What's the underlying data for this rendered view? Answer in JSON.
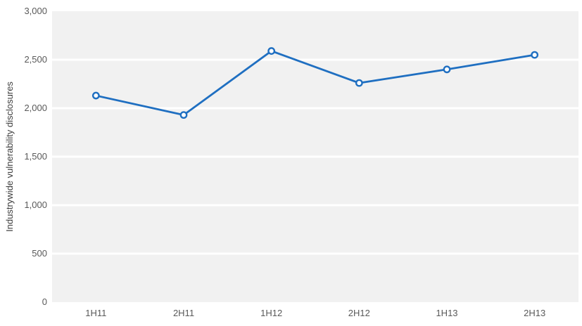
{
  "chart_data": {
    "type": "line",
    "title": "",
    "xlabel": "",
    "ylabel": "Industrywide vulnerability disclosures",
    "categories": [
      "1H11",
      "2H11",
      "1H12",
      "2H12",
      "1H13",
      "2H13"
    ],
    "series": [
      {
        "name": "Industrywide vulnerability disclosures",
        "values": [
          2130,
          1930,
          2590,
          2260,
          2400,
          2550
        ]
      }
    ],
    "ylim": [
      0,
      3000
    ],
    "ytick_step": 500,
    "y_tick_labels": [
      "0",
      "500",
      "1,000",
      "1,500",
      "2,000",
      "2,500",
      "3,000"
    ],
    "grid": "horizontal white gridlines on gray plot background",
    "legend": "none",
    "marker": "open-circle",
    "colors": {
      "line": "#1F6FC1",
      "marker_fill": "#FFFFFF",
      "plot_background": "#F1F1F1",
      "gridline": "#FFFFFF",
      "page_background": "#FFFFFF",
      "tick_label": "#595959",
      "axis_title": "#404040"
    }
  }
}
